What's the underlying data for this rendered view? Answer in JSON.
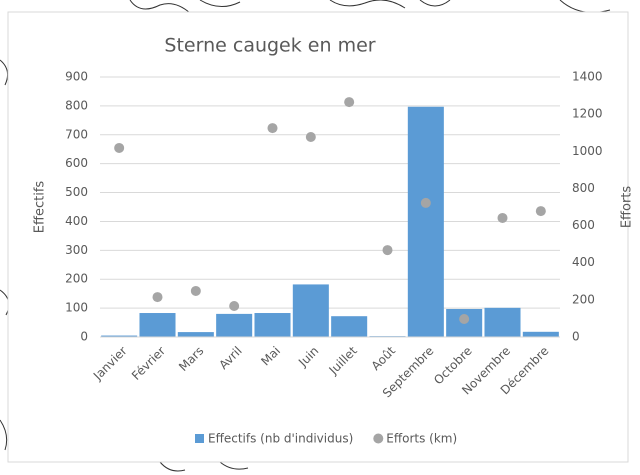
{
  "chart_data": {
    "type": "bar_scatter",
    "title": "Sterne caugek en mer",
    "categories": [
      "Janvier",
      "Février",
      "Mars",
      "Avril",
      "Mai",
      "Juin",
      "Juillet",
      "Août",
      "Septembre",
      "Octobre",
      "Novembre",
      "Décembre"
    ],
    "series": [
      {
        "name": "Effectifs (nb d'individus)",
        "type": "bar",
        "color": "#5b9bd5",
        "values": [
          5,
          83,
          17,
          80,
          83,
          182,
          72,
          3,
          797,
          97,
          101,
          18
        ]
      },
      {
        "name": "Efforts (km)",
        "type": "scatter",
        "axis": "y2",
        "color": "#a5a5a5",
        "values": [
          1018,
          215,
          248,
          167,
          1125,
          1077,
          1265,
          468,
          722,
          97,
          641,
          678
        ]
      }
    ],
    "ylabel": "Effectifs",
    "y2label": "Efforts",
    "ylim": [
      0,
      900
    ],
    "yticks": [
      0,
      100,
      200,
      300,
      400,
      500,
      600,
      700,
      800,
      900
    ],
    "y2lim": [
      0,
      1400
    ],
    "y2ticks": [
      0,
      200,
      400,
      600,
      800,
      1000,
      1200,
      1400
    ],
    "grid": true,
    "legend": "bottom"
  }
}
